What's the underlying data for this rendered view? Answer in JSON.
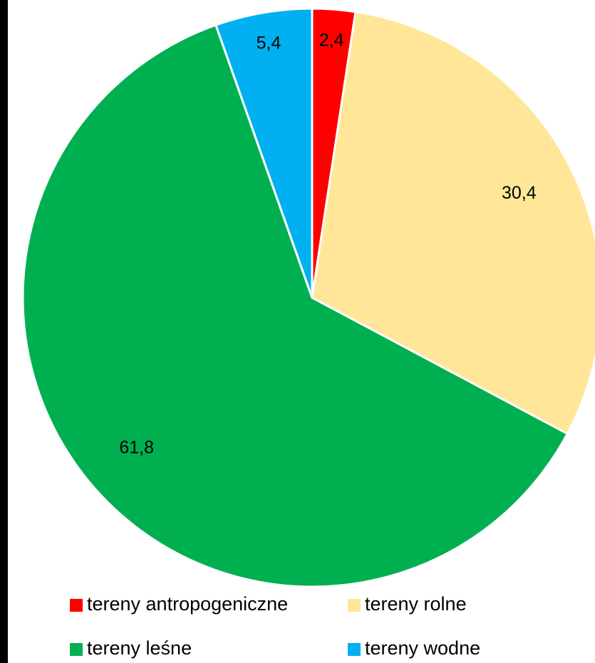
{
  "chart_data": {
    "type": "pie",
    "categories": [
      "tereny antropogeniczne",
      "tereny rolne",
      "tereny leśne",
      "tereny wodne"
    ],
    "values": [
      2.4,
      30.4,
      61.8,
      5.4
    ],
    "value_labels": [
      "2,4",
      "30,4",
      "61,8",
      "5,4"
    ],
    "colors": [
      "#ff0000",
      "#ffe699",
      "#00b050",
      "#00b0f0"
    ],
    "legend": "bottom"
  }
}
